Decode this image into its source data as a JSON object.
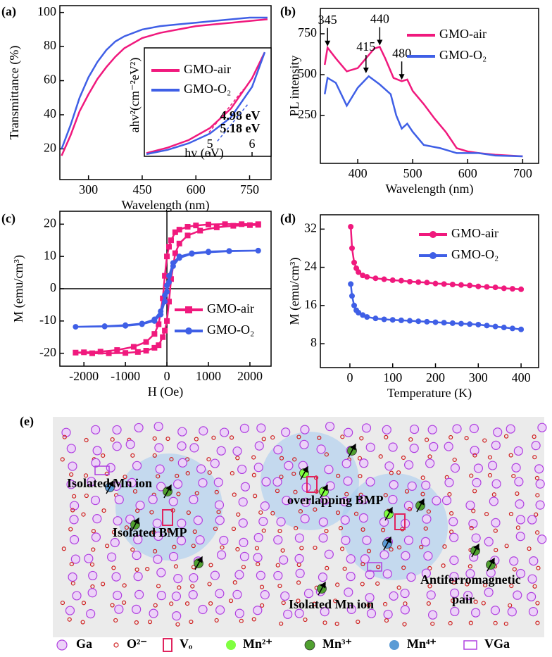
{
  "chart_data": [
    {
      "label": "(a)",
      "type": "line",
      "x_label": "Wavelength (nm)",
      "y_label": "Transmittance (%)",
      "xlim": [
        220,
        810
      ],
      "xticks": [
        300,
        450,
        600,
        750
      ],
      "ylim": [
        2,
        104
      ],
      "yticks": [
        20,
        40,
        60,
        80,
        100
      ],
      "series": [
        {
          "color": "#f0197d",
          "x": [
            225,
            250,
            275,
            300,
            325,
            350,
            375,
            400,
            450,
            500,
            550,
            600,
            650,
            700,
            750,
            800
          ],
          "values": [
            16,
            28,
            42,
            52,
            61,
            68,
            74,
            79,
            85,
            88,
            90,
            92,
            93,
            94,
            95,
            96
          ]
        },
        {
          "color": "#3f5fe6",
          "x": [
            225,
            250,
            275,
            300,
            325,
            350,
            375,
            400,
            450,
            500,
            550,
            600,
            650,
            700,
            750,
            800
          ],
          "values": [
            20,
            34,
            50,
            62,
            71,
            78,
            83,
            86,
            90,
            92,
            93,
            94,
            95,
            96,
            97,
            97
          ]
        }
      ]
    },
    {
      "type": "line",
      "x_label": "hv (eV)",
      "y_label": "ahv²(cm⁻²eV²)",
      "xlim": [
        3.45,
        6.45
      ],
      "xticks": [
        5,
        6
      ],
      "ylim": [
        0,
        10
      ],
      "series": [
        {
          "name": "GMO-air",
          "color": "#f0197d",
          "x": [
            3.5,
            4,
            4.5,
            5,
            5.5,
            6,
            6.3
          ],
          "values": [
            0.3,
            0.8,
            1.5,
            2.6,
            4.4,
            7.2,
            9.6
          ]
        },
        {
          "name": "GMO-O₂",
          "color": "#3f5fe6",
          "x": [
            3.5,
            4,
            4.5,
            5,
            5.5,
            6,
            6.3
          ],
          "values": [
            0.2,
            0.6,
            1.2,
            2.1,
            3.6,
            6.4,
            9.6
          ]
        }
      ],
      "fits": [
        {
          "label": "4.98 eV",
          "color": "#f0197d",
          "x": [
            4.98,
            5.8
          ],
          "values": [
            2.2,
            6.2
          ]
        },
        {
          "label": "5.18 eV",
          "color": "#3f5fe6",
          "x": [
            5.18,
            5.9
          ],
          "values": [
            1.4,
            4.8
          ]
        }
      ]
    },
    {
      "label": "(b)",
      "type": "line",
      "x_label": "Wavelength (nm)",
      "y_label": "PL intensity",
      "xlim": [
        332,
        729
      ],
      "xticks": [
        400,
        500,
        600,
        700
      ],
      "ylim": [
        -43,
        905
      ],
      "yticks": [
        250,
        500,
        750
      ],
      "series": [
        {
          "name": "GMO-air",
          "color": "#f0197d",
          "x": [
            340,
            345,
            360,
            380,
            400,
            415,
            430,
            440,
            450,
            465,
            480,
            490,
            500,
            520,
            540,
            560,
            580,
            600,
            620,
            650,
            700
          ],
          "values": [
            560,
            665,
            600,
            520,
            540,
            600,
            660,
            670,
            600,
            480,
            460,
            470,
            400,
            320,
            230,
            150,
            50,
            30,
            20,
            10,
            0
          ]
        },
        {
          "name": "GMO-O₂",
          "color": "#3f5fe6",
          "x": [
            340,
            345,
            360,
            380,
            400,
            420,
            440,
            460,
            470,
            480,
            490,
            500,
            520,
            550,
            580,
            620,
            650,
            700
          ],
          "values": [
            380,
            480,
            450,
            310,
            420,
            490,
            440,
            380,
            250,
            170,
            200,
            150,
            70,
            50,
            20,
            20,
            5,
            0
          ]
        }
      ],
      "annotations": [
        {
          "label": "345",
          "x": 345,
          "y": 665
        },
        {
          "label": "415",
          "x": 415,
          "y": 500
        },
        {
          "label": "440",
          "x": 440,
          "y": 670
        },
        {
          "label": "480",
          "x": 480,
          "y": 460
        }
      ]
    },
    {
      "label": "(c)",
      "type": "line",
      "x_label": "H (Oe)",
      "y_label": "M (emu/cm³)",
      "xlim": [
        -2580,
        2510
      ],
      "xticks": [
        -2000,
        -1000,
        0,
        1000,
        2000
      ],
      "ylim": [
        -24,
        24
      ],
      "yticks": [
        -20,
        -10,
        0,
        10,
        20
      ],
      "series": [
        {
          "name": "GMO-air",
          "color": "#f0197d",
          "marker": "square",
          "x": [
            2200,
            1800,
            1400,
            1000,
            700,
            500,
            300,
            200,
            100,
            50,
            0,
            -50,
            -100,
            -200,
            -300,
            -500,
            -800,
            -1200,
            -1600,
            -2000,
            -2200,
            -1800,
            -1400,
            -1000,
            -700,
            -500,
            -300,
            -200,
            -100,
            -50,
            0,
            50,
            100,
            200,
            300,
            500,
            800,
            1200,
            1600,
            2000,
            2200
          ],
          "values": [
            20,
            20,
            20,
            19.9,
            19.6,
            19.2,
            18.3,
            17.5,
            15,
            13,
            10,
            4,
            -3,
            -11,
            -14,
            -16.5,
            -18,
            -19,
            -19.5,
            -19.7,
            -19.8,
            -20,
            -20,
            -19.9,
            -19.6,
            -19.2,
            -18.3,
            -17.5,
            -15,
            -13,
            -10,
            -4,
            3,
            11,
            14,
            16.5,
            18,
            19,
            19.5,
            19.7,
            19.8
          ]
        },
        {
          "name": "GMO-O₂",
          "color": "#3f5fe6",
          "marker": "circle",
          "x": [
            2200,
            1500,
            1000,
            600,
            300,
            150,
            50,
            0,
            -50,
            -150,
            -300,
            -600,
            -1000,
            -1500,
            -2200,
            -1500,
            -1000,
            -600,
            -300,
            -150,
            -50,
            0,
            50,
            150,
            300,
            600,
            1000,
            1500,
            2200
          ],
          "values": [
            11.8,
            11.7,
            11.5,
            11,
            10,
            8,
            4,
            1,
            -2,
            -7,
            -9.5,
            -10.8,
            -11.3,
            -11.6,
            -11.8,
            -11.7,
            -11.5,
            -11,
            -10,
            -8,
            -4,
            -1,
            2,
            7,
            9.5,
            10.8,
            11.3,
            11.6,
            11.8
          ]
        }
      ]
    },
    {
      "label": "(d)",
      "type": "line",
      "x_label": "Temperature (K)",
      "y_label": "M (emu/cm³)",
      "xlim": [
        -69,
        441
      ],
      "xticks": [
        0,
        100,
        200,
        300,
        400
      ],
      "ylim": [
        3,
        35
      ],
      "yticks": [
        8,
        16,
        24,
        32
      ],
      "series": [
        {
          "name": "GMO-air",
          "color": "#f0197d",
          "marker": "circle",
          "x": [
            2,
            5,
            10,
            15,
            20,
            30,
            40,
            60,
            80,
            100,
            120,
            140,
            160,
            180,
            200,
            220,
            240,
            260,
            280,
            300,
            320,
            340,
            360,
            380,
            400
          ],
          "values": [
            32.5,
            28,
            25,
            23.8,
            23,
            22.3,
            22,
            21.7,
            21.5,
            21.3,
            21.2,
            21,
            20.9,
            20.8,
            20.6,
            20.5,
            20.4,
            20.3,
            20.2,
            20,
            19.9,
            19.8,
            19.6,
            19.5,
            19.4
          ]
        },
        {
          "name": "GMO-O₂",
          "color": "#3f5fe6",
          "marker": "circle",
          "x": [
            2,
            5,
            10,
            15,
            20,
            30,
            40,
            60,
            80,
            100,
            120,
            140,
            160,
            180,
            200,
            220,
            240,
            260,
            280,
            300,
            320,
            340,
            360,
            380,
            400
          ],
          "values": [
            20.5,
            18,
            16,
            15,
            14.5,
            14,
            13.6,
            13.3,
            13.1,
            13,
            12.9,
            12.8,
            12.7,
            12.6,
            12.5,
            12.4,
            12.3,
            12.2,
            12.1,
            12,
            11.8,
            11.6,
            11.4,
            11.2,
            11
          ]
        }
      ]
    }
  ],
  "diagram": {
    "label": "(e)",
    "annotations": [
      [
        "Isolated  Mn ion"
      ],
      [
        "Isolated  BMP"
      ],
      [
        "overlapping BMP"
      ],
      [
        "Isolated  Mn ion"
      ],
      [
        "Antiferromagnetic",
        "pair"
      ]
    ],
    "legend": [
      "Ga",
      "O²⁻",
      "Vₒ",
      "Mn²⁺",
      "Mn³⁺",
      "Mn⁴⁺",
      "VGa"
    ]
  }
}
